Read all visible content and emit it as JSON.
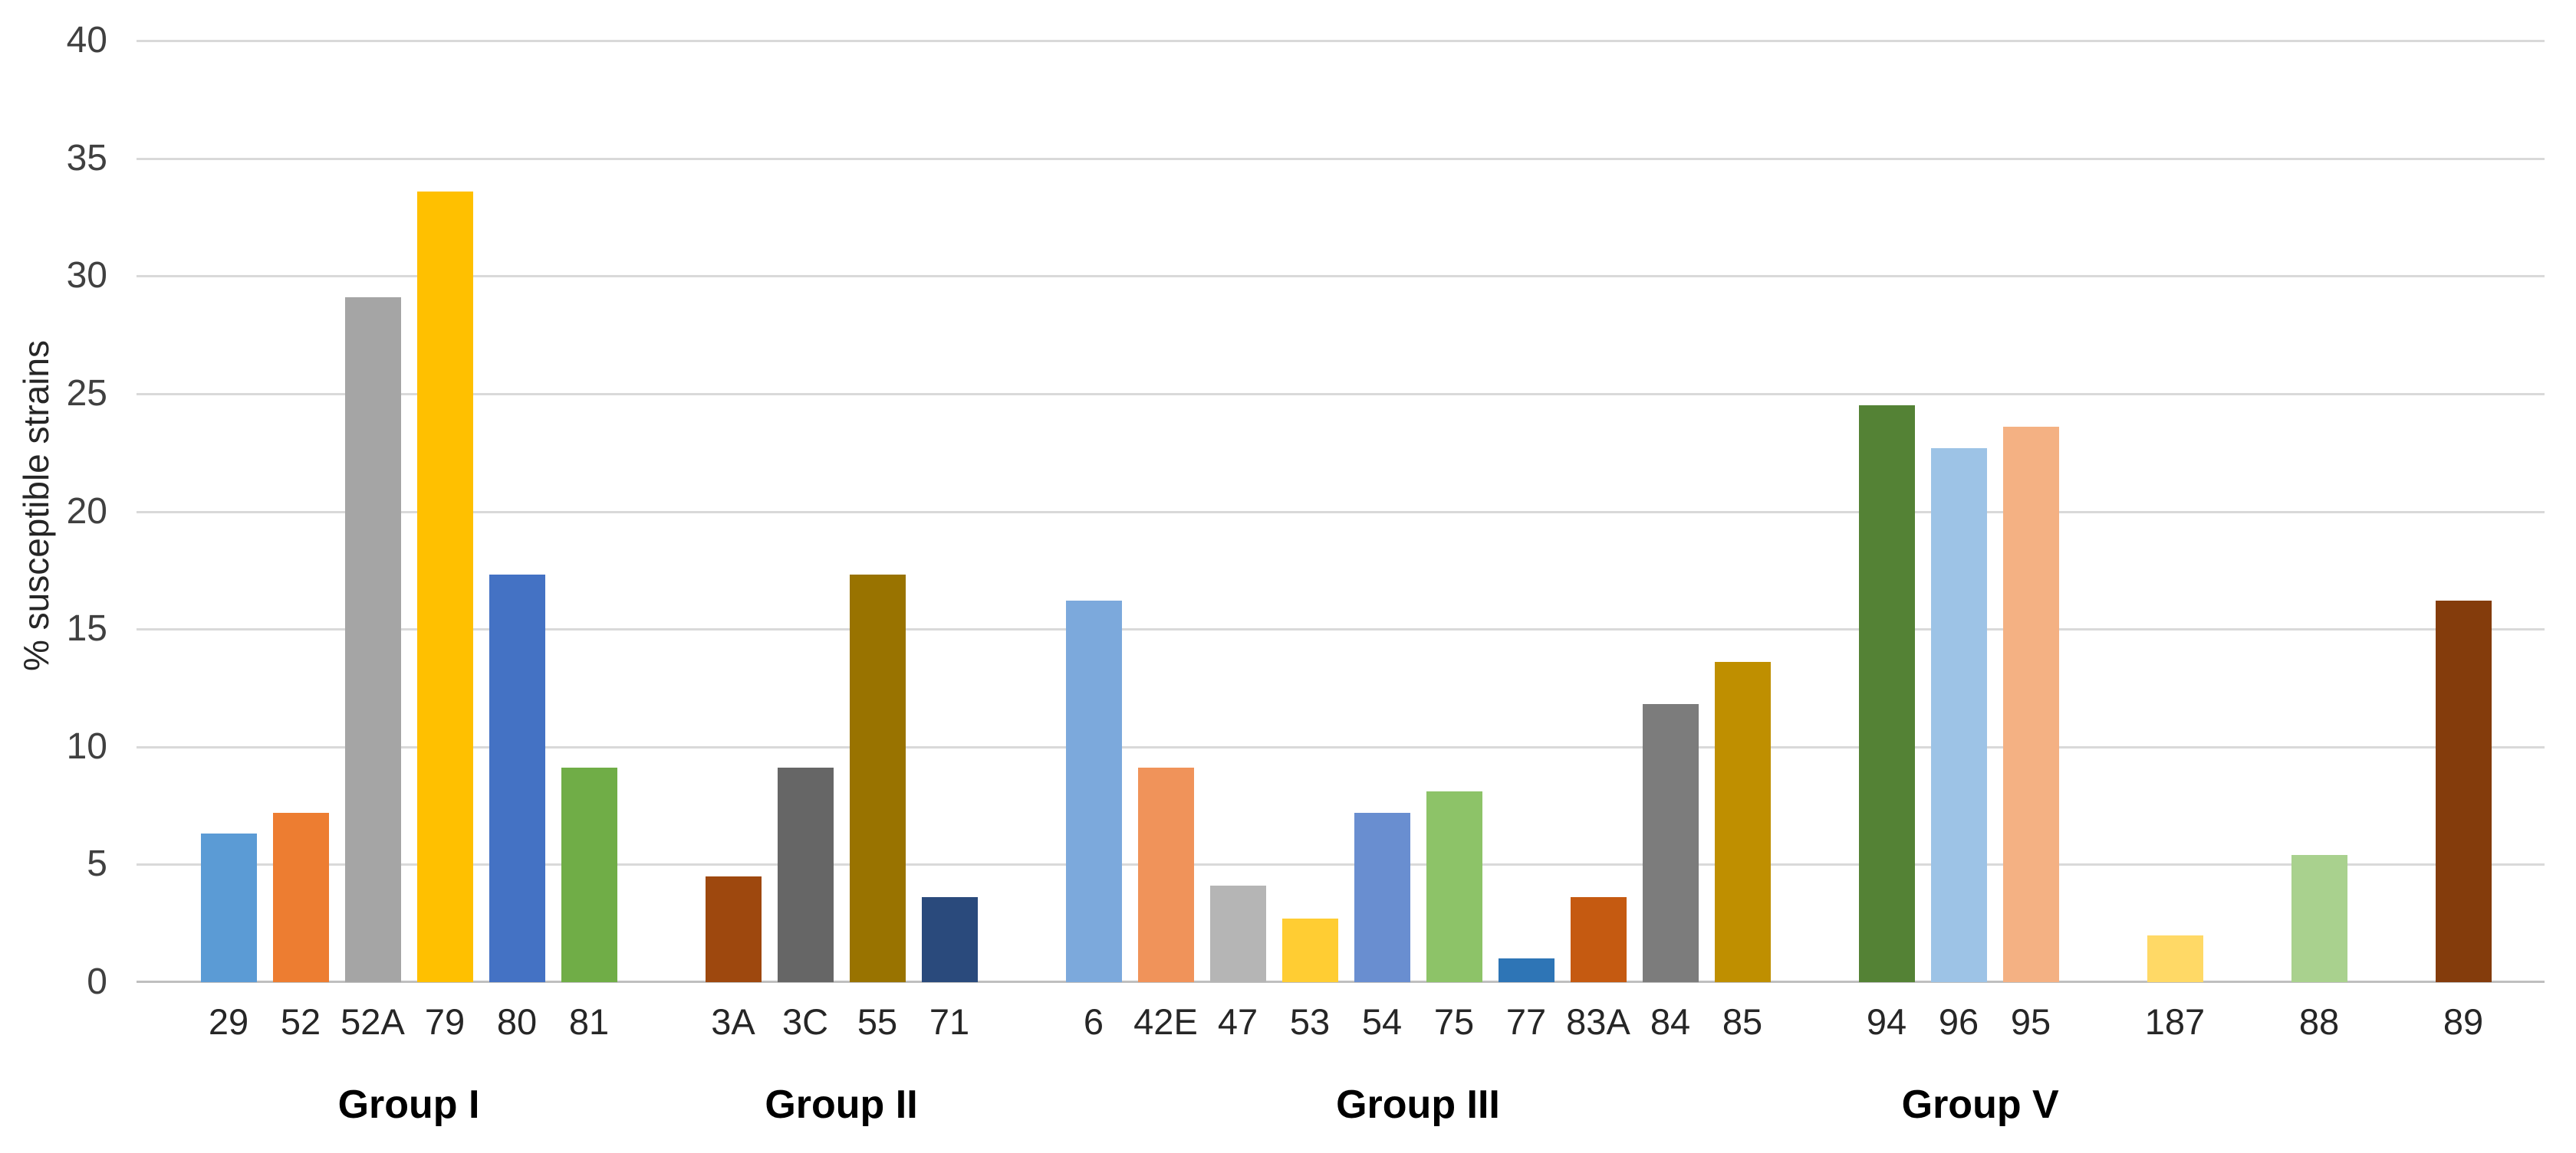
{
  "chart_data": {
    "type": "bar",
    "title": "",
    "ylabel": "% susceptible strains",
    "xlabel": "",
    "ylim": [
      0,
      40
    ],
    "yticks": [
      0,
      5,
      10,
      15,
      20,
      25,
      30,
      35,
      40
    ],
    "grid": "horizontal",
    "legend": "none",
    "groups": [
      {
        "label": "Group I",
        "label_slot": 2.5,
        "bars": [
          {
            "label": "29",
            "value": 6.3,
            "slot": 0,
            "color": "#5B9BD5"
          },
          {
            "label": "52",
            "value": 7.2,
            "slot": 1,
            "color": "#ED7D31"
          },
          {
            "label": "52A",
            "value": 29.1,
            "slot": 2,
            "color": "#A5A5A5"
          },
          {
            "label": "79",
            "value": 33.6,
            "slot": 3,
            "color": "#FFC000"
          },
          {
            "label": "80",
            "value": 17.3,
            "slot": 4,
            "color": "#4472C4"
          },
          {
            "label": "81",
            "value": 9.1,
            "slot": 5,
            "color": "#70AD47"
          }
        ]
      },
      {
        "label": "Group II",
        "label_slot": 8.5,
        "bars": [
          {
            "label": "3A",
            "value": 4.5,
            "slot": 7,
            "color": "#9E480E"
          },
          {
            "label": "3C",
            "value": 9.1,
            "slot": 8,
            "color": "#666666"
          },
          {
            "label": "55",
            "value": 17.3,
            "slot": 9,
            "color": "#997300"
          },
          {
            "label": "71",
            "value": 3.6,
            "slot": 10,
            "color": "#2A4A7C"
          }
        ]
      },
      {
        "label": "Group III",
        "label_slot": 16.5,
        "bars": [
          {
            "label": "6",
            "value": 16.2,
            "slot": 12,
            "color": "#7CA9DC"
          },
          {
            "label": "42E",
            "value": 9.1,
            "slot": 13,
            "color": "#F0935A"
          },
          {
            "label": "47",
            "value": 4.1,
            "slot": 14,
            "color": "#B5B5B5"
          },
          {
            "label": "53",
            "value": 2.7,
            "slot": 15,
            "color": "#FFCD33"
          },
          {
            "label": "54",
            "value": 7.2,
            "slot": 16,
            "color": "#698ED0"
          },
          {
            "label": "75",
            "value": 8.1,
            "slot": 17,
            "color": "#8DC368"
          },
          {
            "label": "77",
            "value": 1.0,
            "slot": 18,
            "color": "#2E75B6"
          },
          {
            "label": "83A",
            "value": 3.6,
            "slot": 19,
            "color": "#C55A11"
          },
          {
            "label": "84",
            "value": 11.8,
            "slot": 20,
            "color": "#7C7C7C"
          },
          {
            "label": "85",
            "value": 13.6,
            "slot": 21,
            "color": "#BF8F00"
          }
        ]
      },
      {
        "label": "Group V",
        "label_slot": 24.3,
        "bars": [
          {
            "label": "94",
            "value": 24.5,
            "slot": 23,
            "color": "#548235"
          },
          {
            "label": "96",
            "value": 22.7,
            "slot": 24,
            "color": "#9DC3E6"
          },
          {
            "label": "95",
            "value": 23.6,
            "slot": 25,
            "color": "#F4B183"
          },
          {
            "label": "187",
            "value": 2.0,
            "slot": 27,
            "color": "#FFD966"
          },
          {
            "label": "88",
            "value": 5.4,
            "slot": 29,
            "color": "#A9D18E"
          },
          {
            "label": "89",
            "value": 16.2,
            "slot": 31,
            "color": "#843C0C"
          }
        ]
      }
    ],
    "colors": {
      "gridline": "#D9D9D9",
      "axis_line": "#BFBFBF",
      "tick_text": "#404040",
      "label_text": "#262626",
      "group_text": "#000000"
    }
  }
}
